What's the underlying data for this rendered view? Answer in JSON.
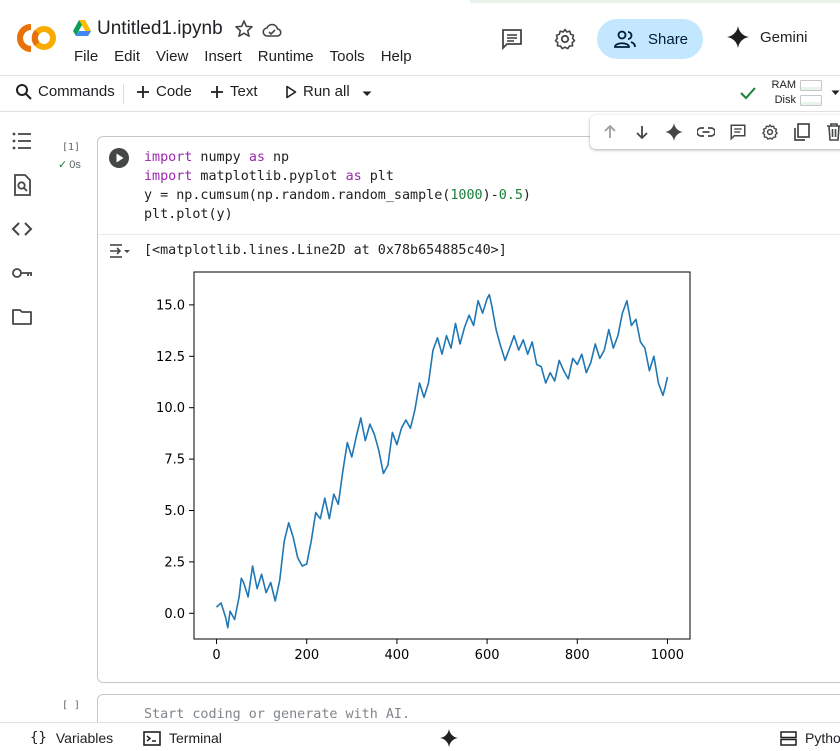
{
  "header": {
    "title": "Untitled1.ipynb",
    "menu": [
      "File",
      "Edit",
      "View",
      "Insert",
      "Runtime",
      "Tools",
      "Help"
    ],
    "share_label": "Share",
    "gemini_label": "Gemini",
    "logo_icon": "colab-logo",
    "accent": "#c2e7ff"
  },
  "toolbar": {
    "commands_label": "Commands",
    "code_label": "Code",
    "text_label": "Text",
    "run_all_label": "Run all",
    "ram_label": "RAM",
    "disk_label": "Disk"
  },
  "cell1": {
    "exec_count": "[1]",
    "exec_time": "0s",
    "code_lines": [
      [
        {
          "t": "import",
          "c": "kw"
        },
        {
          "t": " numpy "
        },
        {
          "t": "as",
          "c": "kw"
        },
        {
          "t": " np"
        }
      ],
      [
        {
          "t": "import",
          "c": "kw"
        },
        {
          "t": " matplotlib.pyplot "
        },
        {
          "t": "as",
          "c": "kw"
        },
        {
          "t": " plt"
        }
      ],
      [
        {
          "t": "y = np.cumsum(np.random.random_sample("
        },
        {
          "t": "1000",
          "c": "num"
        },
        {
          "t": ")-"
        },
        {
          "t": "0.5",
          "c": "num"
        },
        {
          "t": ")"
        }
      ],
      [
        {
          "t": "plt.plot(y)"
        }
      ]
    ],
    "output_text": "[<matplotlib.lines.Line2D at 0x78b654885c40>]"
  },
  "cell2": {
    "exec_count": "[ ]",
    "placeholder": "Start coding or generate with AI."
  },
  "bottombar": {
    "variables_label": "Variables",
    "terminal_label": "Terminal",
    "python_label": "Pytho"
  },
  "chart_data": {
    "type": "line",
    "title": "",
    "xlabel": "",
    "ylabel": "",
    "xlim": [
      -50,
      1050
    ],
    "ylim": [
      -1.25,
      16.6
    ],
    "xticks": [
      0,
      200,
      400,
      600,
      800,
      1000
    ],
    "yticks": [
      0.0,
      2.5,
      5.0,
      7.5,
      10.0,
      12.5,
      15.0
    ],
    "ytick_labels": [
      "0.0",
      "2.5",
      "5.0",
      "7.5",
      "10.0",
      "12.5",
      "15.0"
    ],
    "grid": false,
    "line_color": "#1f77b4",
    "series": [
      {
        "x": [
          0,
          10,
          20,
          25,
          30,
          40,
          50,
          55,
          60,
          70,
          80,
          90,
          100,
          110,
          120,
          130,
          140,
          150,
          160,
          170,
          180,
          190,
          200,
          210,
          220,
          230,
          240,
          250,
          260,
          270,
          280,
          290,
          300,
          310,
          320,
          330,
          340,
          350,
          360,
          370,
          380,
          390,
          400,
          410,
          420,
          430,
          440,
          450,
          460,
          470,
          480,
          490,
          500,
          510,
          520,
          530,
          540,
          550,
          560,
          570,
          580,
          590,
          600,
          605,
          610,
          620,
          630,
          640,
          650,
          660,
          670,
          680,
          690,
          700,
          710,
          720,
          730,
          740,
          750,
          760,
          770,
          780,
          790,
          800,
          810,
          820,
          830,
          840,
          850,
          860,
          870,
          880,
          890,
          900,
          910,
          920,
          930,
          940,
          950,
          960,
          970,
          980,
          990,
          995,
          1000
        ],
        "y": [
          0.3,
          0.5,
          -0.2,
          -0.7,
          0.1,
          -0.3,
          0.8,
          1.7,
          1.5,
          0.8,
          2.3,
          1.2,
          1.9,
          1.0,
          1.5,
          0.6,
          1.6,
          3.5,
          4.4,
          3.7,
          2.7,
          2.3,
          2.4,
          3.5,
          4.9,
          4.6,
          5.6,
          4.6,
          5.8,
          5.3,
          6.9,
          8.3,
          7.6,
          8.6,
          9.5,
          8.4,
          9.2,
          8.7,
          7.9,
          6.8,
          7.2,
          8.8,
          8.2,
          9.0,
          9.4,
          9.0,
          9.9,
          11.2,
          10.5,
          11.2,
          12.8,
          13.4,
          12.6,
          13.5,
          12.9,
          14.1,
          13.1,
          13.9,
          14.5,
          14.0,
          15.2,
          14.6,
          15.3,
          15.5,
          15.0,
          13.8,
          13.0,
          12.3,
          12.9,
          13.5,
          12.8,
          13.3,
          12.6,
          13.2,
          12.1,
          12.0,
          11.2,
          11.7,
          11.3,
          12.3,
          11.8,
          11.4,
          12.4,
          12.1,
          12.6,
          11.7,
          12.2,
          13.1,
          12.4,
          12.8,
          13.8,
          12.9,
          13.5,
          14.6,
          15.2,
          14.0,
          14.3,
          13.2,
          12.9,
          11.8,
          12.5,
          11.2,
          10.6,
          11.0,
          11.5
        ]
      }
    ]
  }
}
